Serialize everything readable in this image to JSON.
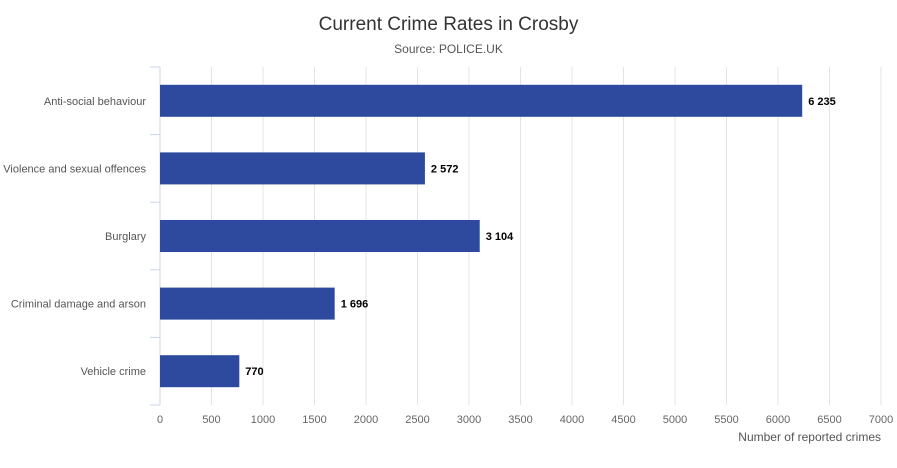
{
  "chart_data": {
    "type": "bar",
    "orientation": "horizontal",
    "title": "Current Crime Rates in Crosby",
    "subtitle": "Source: POLICE.UK",
    "categories": [
      "Anti-social behaviour",
      "Violence and sexual offences",
      "Burglary",
      "Criminal damage and arson",
      "Vehicle crime"
    ],
    "values": [
      6235,
      2572,
      3104,
      1696,
      770
    ],
    "value_labels": [
      "6 235",
      "2 572",
      "3 104",
      "1 696",
      "770"
    ],
    "xlabel": "Number of reported crimes",
    "ylabel": "",
    "xlim": [
      0,
      7000
    ],
    "xticks": [
      "0",
      "500",
      "1000",
      "1500",
      "2000",
      "2500",
      "3000",
      "3500",
      "4000",
      "4500",
      "5000",
      "5500",
      "6000",
      "6500",
      "7000"
    ],
    "grid": true,
    "bar_color": "#2d4a9e"
  }
}
